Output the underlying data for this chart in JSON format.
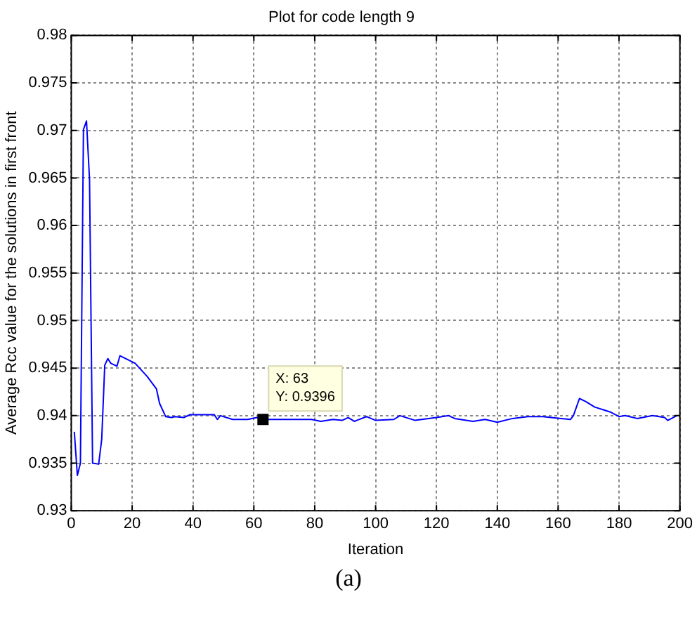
{
  "chart_data": {
    "type": "line",
    "title": "Plot for code length 9",
    "xlabel": "Iteration",
    "ylabel": "Average Rcc value for the solutions in first front",
    "x": [
      1,
      2,
      3,
      4,
      5,
      6,
      7,
      9,
      10,
      11,
      12,
      13,
      15,
      16,
      21,
      25,
      28,
      29,
      31,
      33,
      34,
      37,
      39,
      47,
      48,
      49,
      53,
      58,
      61,
      63,
      67,
      79,
      82,
      86,
      89,
      91,
      93,
      97,
      100,
      106,
      108,
      113,
      120,
      124,
      126,
      132,
      136,
      140,
      145,
      150,
      155,
      161,
      164,
      165,
      167,
      169,
      172,
      175,
      177,
      180,
      182,
      186,
      191,
      195,
      196,
      199
    ],
    "series": [
      {
        "color": "#0000ff",
        "values": [
          0.9383,
          0.9337,
          0.935,
          0.9701,
          0.971,
          0.9648,
          0.935,
          0.9349,
          0.9375,
          0.9453,
          0.946,
          0.9455,
          0.9452,
          0.9463,
          0.9455,
          0.9441,
          0.9428,
          0.9413,
          0.9399,
          0.9398,
          0.9399,
          0.9398,
          0.9401,
          0.9401,
          0.9396,
          0.94,
          0.9396,
          0.9396,
          0.9398,
          0.9396,
          0.9396,
          0.9396,
          0.9394,
          0.9396,
          0.9395,
          0.9398,
          0.9394,
          0.9399,
          0.9395,
          0.9396,
          0.94,
          0.9395,
          0.9398,
          0.94,
          0.9397,
          0.9394,
          0.9396,
          0.9393,
          0.9397,
          0.9399,
          0.9399,
          0.9397,
          0.9396,
          0.94,
          0.9418,
          0.9415,
          0.9409,
          0.9406,
          0.9404,
          0.9399,
          0.94,
          0.9397,
          0.94,
          0.9398,
          0.9395,
          0.94
        ]
      }
    ],
    "xlim": [
      0,
      200
    ],
    "xticks": [
      0,
      20,
      40,
      60,
      80,
      100,
      120,
      140,
      160,
      180,
      200
    ],
    "ylim": [
      0.93,
      0.98
    ],
    "yticks": [
      0.93,
      0.935,
      0.94,
      0.945,
      0.95,
      0.955,
      0.96,
      0.965,
      0.97,
      0.975,
      0.98
    ],
    "grid": true,
    "line_style": "solid",
    "annotations": [
      {
        "text": "X: 63\nY: 0.9396",
        "x": 63,
        "y": 0.9396
      },
      "(a)"
    ]
  }
}
